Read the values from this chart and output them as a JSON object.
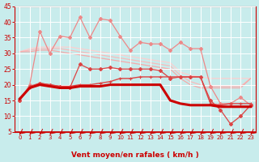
{
  "x": [
    0,
    1,
    2,
    3,
    4,
    5,
    6,
    7,
    8,
    9,
    10,
    11,
    12,
    13,
    14,
    15,
    16,
    17,
    18,
    19,
    20,
    21,
    22,
    23
  ],
  "line_smooth1": [
    30.5,
    31.5,
    32,
    32,
    32,
    32,
    31.5,
    31,
    30.5,
    30,
    29.5,
    29,
    28.5,
    28,
    27.5,
    27,
    24,
    23,
    22.5,
    22,
    22,
    22,
    22,
    22
  ],
  "line_smooth2": [
    30.5,
    31,
    31.5,
    31.5,
    31.5,
    31,
    30.5,
    30,
    29.5,
    29,
    28.5,
    28,
    27.5,
    27,
    26.5,
    26,
    23,
    21,
    20,
    19.5,
    19.5,
    19.5,
    19.5,
    22
  ],
  "line_smooth3": [
    30.5,
    30.5,
    31,
    31,
    30.5,
    30,
    29.5,
    29,
    28.5,
    28,
    27.5,
    27,
    26.5,
    26,
    25.5,
    25,
    22,
    20,
    19,
    19,
    19,
    19,
    19,
    22
  ],
  "line_gust_light": [
    15,
    20,
    37,
    30,
    35.5,
    35,
    41.5,
    35,
    41,
    40.5,
    35.5,
    31,
    33.5,
    33,
    33,
    31,
    33.5,
    31.5,
    31.5,
    19.5,
    14,
    14,
    16,
    13.5
  ],
  "line_gust_med": [
    15,
    19.5,
    20.5,
    20,
    19.5,
    19,
    26.5,
    25,
    25,
    25.5,
    25,
    25,
    25,
    25,
    24.5,
    22,
    22.5,
    22.5,
    22.5,
    15,
    12,
    7.5,
    10,
    13.5
  ],
  "line_wind_med": [
    15,
    19,
    20.5,
    20,
    19.5,
    19.5,
    20,
    20,
    20.5,
    21,
    22,
    22,
    22.5,
    22.5,
    22.5,
    22.5,
    22.5,
    22.5,
    22.5,
    14,
    13.5,
    14,
    14,
    14
  ],
  "line_main": [
    15.5,
    19,
    20,
    19.5,
    19,
    19,
    19.5,
    19.5,
    19.5,
    20,
    20,
    20,
    20,
    20,
    20,
    15,
    14,
    13.5,
    13.5,
    13.5,
    13,
    13,
    13,
    13
  ],
  "bg_color": "#c8ecec",
  "grid_color": "#ffffff",
  "xlabel": "Vent moyen/en rafales ( km/h )",
  "ylim": [
    5,
    45
  ],
  "yticks": [
    5,
    10,
    15,
    20,
    25,
    30,
    35,
    40,
    45
  ],
  "xlim": [
    -0.5,
    23.5
  ],
  "xticks": [
    0,
    1,
    2,
    3,
    4,
    5,
    6,
    7,
    8,
    9,
    10,
    11,
    12,
    13,
    14,
    15,
    16,
    17,
    18,
    19,
    20,
    21,
    22,
    23
  ],
  "red_dark": "#cc0000",
  "red_med": "#dd4444",
  "red_light": "#ee8888",
  "red_pale1": "#f4aaaa",
  "red_pale2": "#f8bbbb",
  "red_pale3": "#fccfcf",
  "spine_color": "#cc0000",
  "tick_color": "#cc0000",
  "xlabel_color": "#cc0000",
  "arrow_color": "#cc0000"
}
